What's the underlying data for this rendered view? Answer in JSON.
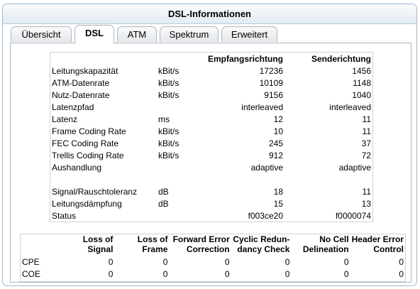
{
  "panel": {
    "title": "DSL-Informationen"
  },
  "tabs": [
    {
      "label": "Übersicht",
      "active": false
    },
    {
      "label": "DSL",
      "active": true
    },
    {
      "label": "ATM",
      "active": false
    },
    {
      "label": "Spektrum",
      "active": false
    },
    {
      "label": "Erweitert",
      "active": false
    }
  ],
  "dsl_table": {
    "headers": {
      "rx": "Empfangsrichtung",
      "tx": "Senderichtung"
    },
    "rows": [
      {
        "label": "Leitungskapazität",
        "unit": "kBit/s",
        "rx": "17236",
        "tx": "1456"
      },
      {
        "label": "ATM-Datenrate",
        "unit": "kBit/s",
        "rx": "10109",
        "tx": "1148"
      },
      {
        "label": "Nutz-Datenrate",
        "unit": "kBit/s",
        "rx": "9156",
        "tx": "1040"
      },
      {
        "label": "Latenzpfad",
        "unit": "",
        "rx": "interleaved",
        "tx": "interleaved"
      },
      {
        "label": "Latenz",
        "unit": "ms",
        "rx": "12",
        "tx": "11"
      },
      {
        "label": "Frame Coding Rate",
        "unit": "kBit/s",
        "rx": "10",
        "tx": "11"
      },
      {
        "label": "FEC Coding Rate",
        "unit": "kBit/s",
        "rx": "245",
        "tx": "37"
      },
      {
        "label": "Trellis Coding Rate",
        "unit": "kBit/s",
        "rx": "912",
        "tx": "72"
      },
      {
        "label": "Aushandlung",
        "unit": "",
        "rx": "adaptive",
        "tx": "adaptive"
      },
      {
        "label": "",
        "unit": "",
        "rx": "",
        "tx": ""
      },
      {
        "label": "Signal/Rauschtoleranz",
        "unit": "dB",
        "rx": "18",
        "tx": "11"
      },
      {
        "label": "Leitungsdämpfung",
        "unit": "dB",
        "rx": "15",
        "tx": "13"
      },
      {
        "label": "Status",
        "unit": "",
        "rx": "f003ce20",
        "tx": "f0000074"
      }
    ]
  },
  "error_table": {
    "headers": [
      {
        "line1": "Loss of",
        "line2": "Signal"
      },
      {
        "line1": "Loss of",
        "line2": "Frame"
      },
      {
        "line1": "Forward Error",
        "line2": "Correction"
      },
      {
        "line1": "Cyclic Redun-",
        "line2": "dancy Check"
      },
      {
        "line1": "No Cell",
        "line2": "Delineation"
      },
      {
        "line1": "Header Error",
        "line2": "Control"
      }
    ],
    "rows": [
      {
        "label": "CPE",
        "values": [
          "0",
          "0",
          "0",
          "0",
          "0",
          "0"
        ]
      },
      {
        "label": "COE",
        "values": [
          "0",
          "0",
          "0",
          "0",
          "0",
          "0"
        ]
      }
    ]
  }
}
